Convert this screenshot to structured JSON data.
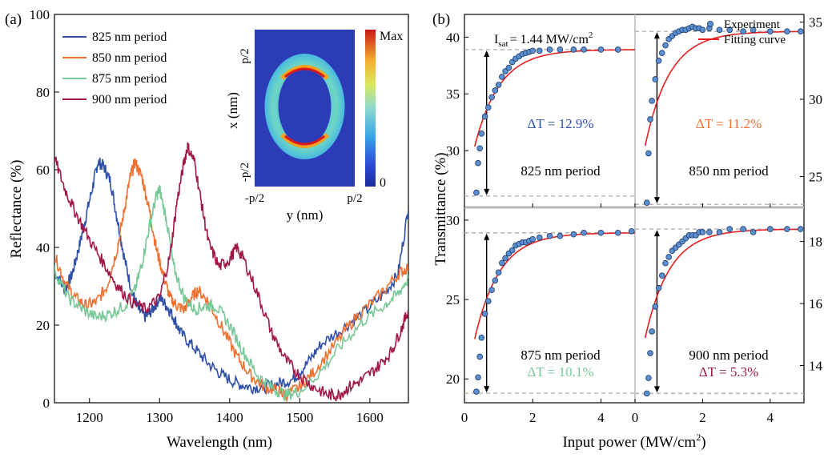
{
  "panel_a": {
    "label": "(a)",
    "xlabel": "Wavelength (nm)",
    "ylabel": "Reflectance (%)",
    "inset": {
      "xlabel": "y (nm)",
      "ylabel": "x (nm)",
      "x_min_label": "-p/2",
      "x_max_label": "p/2",
      "y_min_label": "-p/2",
      "y_max_label": "p/2",
      "colorbar_max": "Max",
      "colorbar_min": "0"
    }
  },
  "panel_b": {
    "label": "(b)",
    "ylabel": "Transmittance (%)",
    "xlabel_main": "Input power (MW/cm",
    "xlabel_sup": "2",
    "xlabel_end": ")",
    "isat_main": "I",
    "isat_sub": "sat",
    "isat_value": "= 1.44 MW/cm",
    "isat_sup": "2",
    "legend_experiment": "Experiment",
    "legend_fit": "Fitting curve"
  },
  "colors": {
    "825": "#3050a8",
    "850": "#f07030",
    "875": "#78c898",
    "900": "#a01848",
    "fit": "#e82020",
    "marker": "#5b8fd0"
  },
  "chart_data": [
    {
      "type": "line",
      "xlabel": "Wavelength (nm)",
      "ylabel": "Reflectance (%)",
      "xlim": [
        1150,
        1655
      ],
      "ylim": [
        0,
        100
      ],
      "xticks": [
        1200,
        1300,
        1400,
        1500,
        1600
      ],
      "yticks": [
        0,
        20,
        40,
        60,
        80,
        100
      ],
      "legend_position": "top-left",
      "series": [
        {
          "name": "825 nm period",
          "color_key": "825",
          "x": [
            1150,
            1165,
            1175,
            1185,
            1195,
            1205,
            1212,
            1220,
            1230,
            1240,
            1250,
            1260,
            1270,
            1280,
            1290,
            1300,
            1310,
            1320,
            1330,
            1350,
            1370,
            1390,
            1410,
            1430,
            1450,
            1470,
            1490,
            1510,
            1530,
            1560,
            1590,
            1620,
            1640,
            1655
          ],
          "y": [
            34,
            29,
            33,
            40,
            48,
            56,
            62,
            61,
            57,
            47,
            37,
            29,
            24,
            22,
            24,
            27,
            25,
            22,
            18,
            14,
            10,
            7,
            5,
            4,
            4,
            5,
            6,
            10,
            15,
            19,
            23,
            28,
            33,
            50
          ]
        },
        {
          "name": "850 nm period",
          "color_key": "850",
          "x": [
            1150,
            1165,
            1180,
            1195,
            1210,
            1225,
            1240,
            1250,
            1258,
            1265,
            1275,
            1285,
            1295,
            1305,
            1315,
            1325,
            1335,
            1345,
            1355,
            1370,
            1390,
            1410,
            1430,
            1450,
            1470,
            1480,
            1500,
            1520,
            1550,
            1580,
            1610,
            1640,
            1655
          ],
          "y": [
            38,
            31,
            27,
            25,
            26,
            30,
            40,
            50,
            58,
            62,
            58,
            50,
            40,
            33,
            27,
            25,
            24,
            27,
            29,
            26,
            19,
            12,
            7,
            4,
            3,
            2,
            4,
            8,
            15,
            22,
            27,
            33,
            35
          ]
        },
        {
          "name": "875 nm period",
          "color_key": "875",
          "x": [
            1150,
            1170,
            1190,
            1210,
            1230,
            1250,
            1265,
            1275,
            1285,
            1295,
            1300,
            1310,
            1320,
            1335,
            1350,
            1365,
            1380,
            1400,
            1420,
            1440,
            1460,
            1480,
            1500,
            1530,
            1560,
            1590,
            1620,
            1640,
            1655
          ],
          "y": [
            34,
            27,
            24,
            22,
            23,
            25,
            29,
            36,
            45,
            53,
            55,
            47,
            35,
            27,
            24,
            25,
            25,
            20,
            13,
            7,
            4,
            2,
            3,
            8,
            15,
            21,
            25,
            28,
            32
          ]
        },
        {
          "name": "900 nm period",
          "color_key": "900",
          "x": [
            1150,
            1165,
            1180,
            1200,
            1220,
            1240,
            1260,
            1280,
            1300,
            1315,
            1325,
            1335,
            1340,
            1350,
            1360,
            1370,
            1385,
            1400,
            1410,
            1420,
            1440,
            1460,
            1480,
            1500,
            1520,
            1540,
            1555,
            1570,
            1590,
            1610,
            1630,
            1645,
            1655
          ],
          "y": [
            63,
            55,
            49,
            42,
            36,
            30,
            26,
            24,
            27,
            38,
            52,
            62,
            66,
            62,
            51,
            41,
            35,
            37,
            40,
            37,
            28,
            18,
            11,
            7,
            4,
            2,
            2,
            4,
            6,
            9,
            13,
            19,
            24
          ]
        }
      ]
    },
    {
      "type": "scatter",
      "subpanel": "825 nm period",
      "annotation": "ΔT = 12.9%",
      "label": "825 nm period",
      "color_key": "825",
      "xlim": [
        0,
        5
      ],
      "ylim": [
        25,
        42
      ],
      "yticks": [
        30,
        35,
        40
      ],
      "xticks": [
        0,
        2,
        4
      ],
      "saturation": {
        "y0": 26,
        "dT": 12.9
      },
      "experiment_x": [
        0.35,
        0.4,
        0.45,
        0.5,
        0.6,
        0.7,
        0.8,
        0.9,
        1.0,
        1.1,
        1.2,
        1.3,
        1.4,
        1.5,
        1.6,
        1.7,
        1.8,
        1.9,
        2.0,
        2.2,
        2.5,
        2.8,
        3.2,
        3.5,
        4.0,
        4.5
      ],
      "experiment_y": [
        26.3,
        28.9,
        30.2,
        31.5,
        33.0,
        33.8,
        34.7,
        35.3,
        35.8,
        36.5,
        37.0,
        37.3,
        37.8,
        38.1,
        38.3,
        38.5,
        38.6,
        38.7,
        38.8,
        38.8,
        38.9,
        38.9,
        38.9,
        38.9,
        38.9,
        38.9
      ]
    },
    {
      "type": "scatter",
      "subpanel": "850 nm period",
      "annotation": "ΔT = 11.2%",
      "label": "850 nm period",
      "color_key": "850",
      "xlim": [
        0,
        5
      ],
      "ylim": [
        23,
        35.5
      ],
      "yticks": [
        25,
        30,
        35
      ],
      "xticks": [
        0,
        2,
        4
      ],
      "saturation": {
        "y0": 23.2,
        "dT": 11.2
      },
      "experiment_x": [
        0.35,
        0.4,
        0.45,
        0.5,
        0.6,
        0.7,
        0.8,
        0.9,
        1.0,
        1.1,
        1.2,
        1.3,
        1.4,
        1.5,
        1.6,
        1.7,
        1.8,
        1.9,
        2.0,
        2.2,
        2.5,
        2.8,
        3.2,
        3.5,
        4.0,
        4.5,
        4.9
      ],
      "experiment_y": [
        23.3,
        26.5,
        28.7,
        29.9,
        31.3,
        32.5,
        33.0,
        33.5,
        33.9,
        34.1,
        34.3,
        34.4,
        34.5,
        34.5,
        34.6,
        34.7,
        34.6,
        34.6,
        34.5,
        34.6,
        34.5,
        34.5,
        34.4,
        34.5,
        34.4,
        34.4,
        34.4
      ]
    },
    {
      "type": "scatter",
      "subpanel": "875 nm period",
      "annotation": "ΔT = 10.1%",
      "label": "875 nm period",
      "color_key": "875",
      "xlim": [
        0,
        5
      ],
      "ylim": [
        18.5,
        30.8
      ],
      "yticks": [
        20,
        25,
        30
      ],
      "xticks": [
        0,
        2,
        4
      ],
      "saturation": {
        "y0": 19.1,
        "dT": 10.1
      },
      "experiment_x": [
        0.35,
        0.4,
        0.45,
        0.5,
        0.6,
        0.7,
        0.8,
        0.9,
        1.0,
        1.1,
        1.2,
        1.3,
        1.4,
        1.5,
        1.6,
        1.7,
        1.8,
        1.9,
        2.0,
        2.2,
        2.5,
        2.8,
        3.2,
        3.5,
        4.0,
        4.5,
        4.9
      ],
      "experiment_y": [
        19.2,
        20.1,
        21.4,
        22.6,
        24.1,
        24.9,
        25.6,
        26.2,
        26.7,
        27.3,
        27.6,
        27.9,
        28.1,
        28.4,
        28.5,
        28.6,
        28.6,
        28.7,
        28.8,
        28.9,
        29.0,
        29.0,
        29.1,
        29.2,
        29.2,
        29.2,
        29.3
      ]
    },
    {
      "type": "scatter",
      "subpanel": "900 nm period",
      "annotation": "ΔT = 5.3%",
      "label": "900 nm period",
      "color_key": "900",
      "xlim": [
        0,
        5
      ],
      "ylim": [
        12.8,
        19.1
      ],
      "yticks": [
        14,
        16,
        18
      ],
      "xticks": [
        0,
        2,
        4
      ],
      "saturation": {
        "y0": 13.1,
        "dT": 5.3
      },
      "experiment_x": [
        0.35,
        0.4,
        0.45,
        0.5,
        0.6,
        0.7,
        0.8,
        0.9,
        1.0,
        1.1,
        1.2,
        1.3,
        1.4,
        1.5,
        1.6,
        1.7,
        1.8,
        1.9,
        2.0,
        2.2,
        2.5,
        2.8,
        3.2,
        3.5,
        4.0,
        4.5,
        4.9
      ],
      "experiment_y": [
        13.1,
        13.6,
        14.4,
        15.1,
        15.9,
        16.5,
        16.9,
        17.3,
        17.5,
        17.7,
        17.8,
        17.9,
        18.0,
        18.1,
        18.2,
        18.2,
        18.2,
        18.3,
        18.3,
        18.3,
        18.3,
        18.4,
        18.4,
        18.3,
        18.4,
        18.4,
        18.4
      ]
    }
  ],
  "inset_field": {
    "type": "heatmap",
    "description_levels": [
      "0",
      "Max"
    ]
  }
}
